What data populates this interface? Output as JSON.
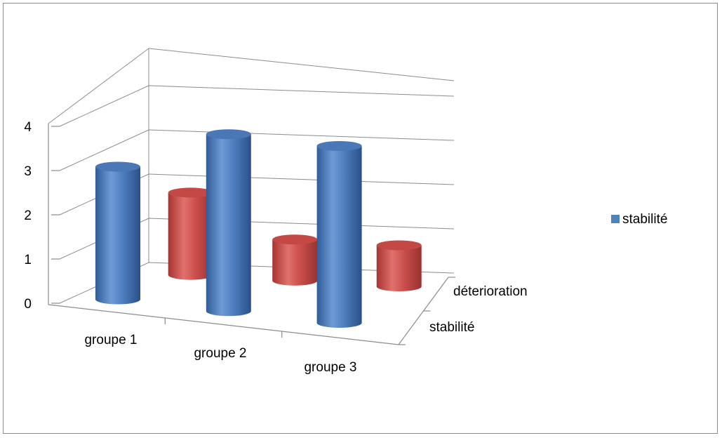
{
  "chart_data": {
    "type": "bar",
    "subtype": "3d-cylinder",
    "title": "",
    "xlabel": "",
    "ylabel": "",
    "categories": [
      "groupe 1",
      "groupe 2",
      "groupe 3"
    ],
    "series": [
      {
        "name": "stabilité",
        "values": [
          3,
          4,
          4
        ],
        "color": "#4f81bd"
      },
      {
        "name": "déterioration",
        "values": [
          2,
          1,
          1
        ],
        "color": "#c0504d"
      }
    ],
    "y_ticks": [
      "0",
      "1",
      "2",
      "3",
      "4"
    ],
    "ylim": [
      0,
      4
    ],
    "grid": true,
    "legend": {
      "position": "right",
      "entries": [
        "stabilité"
      ]
    }
  }
}
